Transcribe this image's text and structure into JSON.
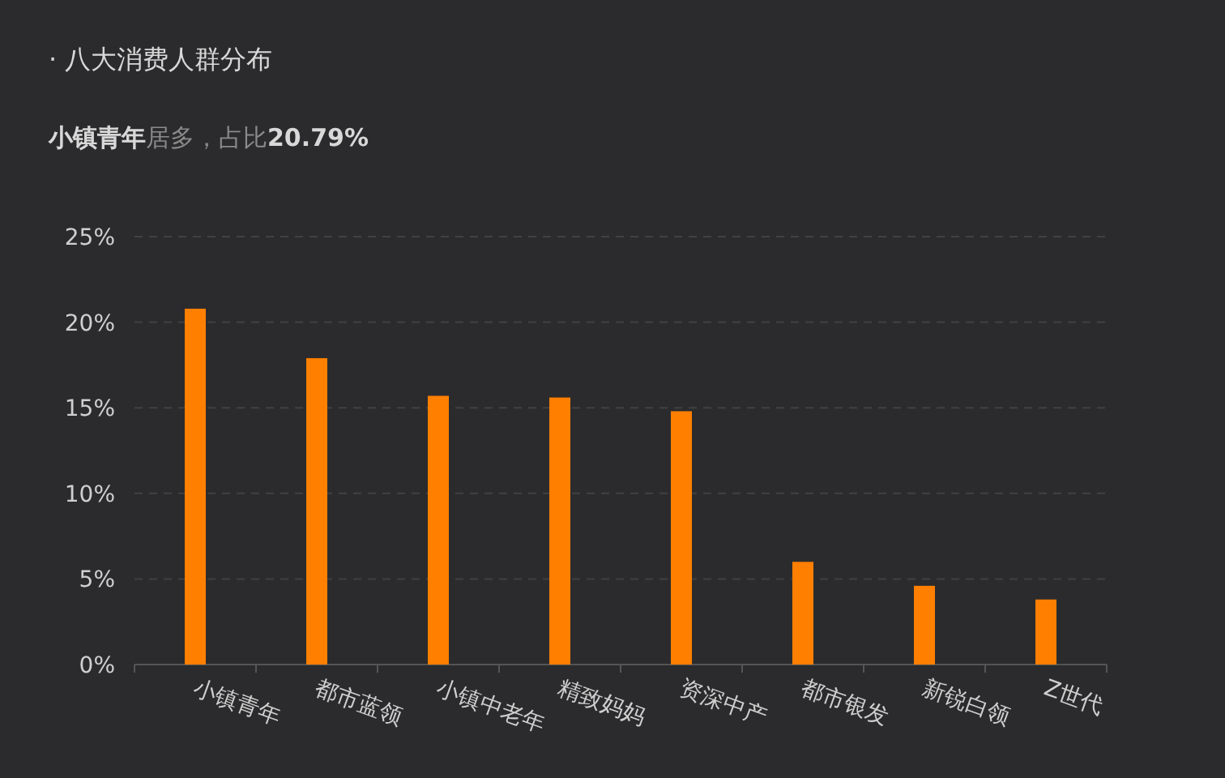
{
  "chart_data": {
    "type": "bar",
    "title": "· 八大消费人群分布",
    "subtitle": "**小镇青年**居多，占比**20.79%**",
    "categories": [
      "小镇青年",
      "都市蓝领",
      "小镇中老年",
      "精致妈妈",
      "资深中产",
      "都市银发",
      "新锐白领",
      "Z世代"
    ],
    "values": [
      20.79,
      17.9,
      15.7,
      15.6,
      14.8,
      6.0,
      4.6,
      3.8
    ],
    "color": "#ff7f00",
    "ylim": [
      0,
      25
    ],
    "yticks": [
      {
        "value": 0,
        "label": "0%"
      },
      {
        "value": 5,
        "label": "5%"
      },
      {
        "value": 10,
        "label": "10%"
      },
      {
        "value": 15,
        "label": "15%"
      },
      {
        "value": 20,
        "label": "20%"
      },
      {
        "value": 25,
        "label": "25%"
      }
    ],
    "grid": "y"
  }
}
